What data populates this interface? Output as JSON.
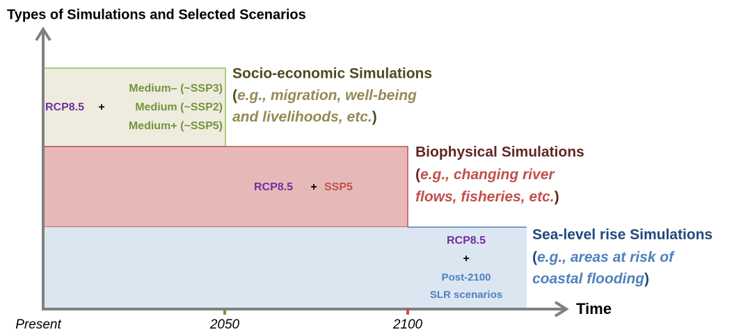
{
  "title": "Types of Simulations and Selected Scenarios",
  "axis": {
    "x_label": "Time",
    "ticks": [
      "Present",
      "2050",
      "2100"
    ]
  },
  "boxes": [
    {
      "name": "Socio-economic Simulations",
      "lines": [
        [
          "(",
          "e.g., migration, well-being"
        ],
        [
          "and livelihoods, etc.",
          ")"
        ]
      ],
      "scenario": [
        "RCP8.5",
        "+",
        "Medium– (~SSP3)",
        "Medium (~SSP2)",
        "Medium+ (~SSP5)"
      ]
    },
    {
      "name": "Biophysical Simulations",
      "lines": [
        [
          "(",
          "e.g., changing river"
        ],
        [
          "flows, fisheries, etc.",
          ")"
        ]
      ],
      "scenario": [
        "RCP8.5",
        "+",
        "SSP5"
      ]
    },
    {
      "name": "Sea-level rise Simulations",
      "lines": [
        [
          "(",
          "e.g., areas at risk of"
        ],
        [
          "coastal flooding",
          ")"
        ]
      ],
      "scenario": [
        "RCP8.5",
        "+",
        "Post-2100",
        "SLR scenarios"
      ]
    }
  ]
}
